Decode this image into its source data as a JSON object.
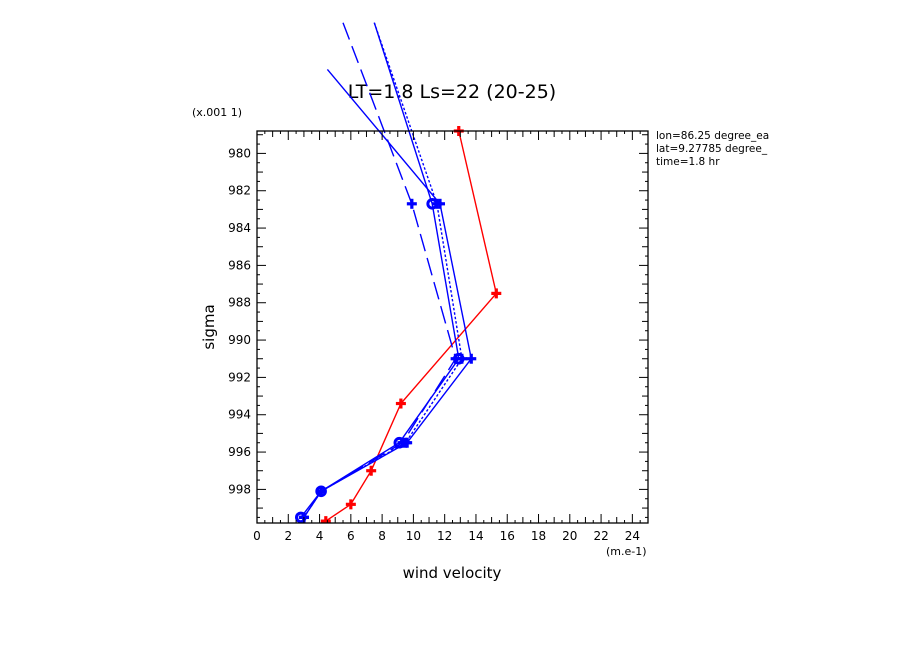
{
  "chart_data": {
    "type": "line",
    "title": "LT=1.8  Ls=22 (20-25)",
    "xlabel": "wind velocity",
    "ylabel": "sigma",
    "x_unit": "(m.e-1)",
    "y_scale_note": "(x.001 1)",
    "xlim": [
      0,
      25
    ],
    "ylim": [
      999.8,
      978.8
    ],
    "x_ticks": [
      0,
      2,
      4,
      6,
      8,
      10,
      12,
      14,
      16,
      18,
      20,
      22,
      24
    ],
    "x_tick_labels": [
      "0",
      "2",
      "4",
      "6",
      "8",
      "10",
      "12",
      "14",
      "16",
      "18",
      "20",
      "22",
      "24"
    ],
    "y_ticks": [
      980,
      982,
      984,
      986,
      988,
      990,
      992,
      994,
      996,
      998
    ],
    "y_tick_labels": [
      "980",
      "982",
      "984",
      "986",
      "988",
      "990",
      "992",
      "994",
      "996",
      "998"
    ],
    "info": [
      "lon=86.25 degree_ea",
      "lat=9.27785 degree_",
      "time=1.8 hr"
    ],
    "series": [
      {
        "color": "#ff0000",
        "dash": "solid",
        "marker": "cross",
        "x": [
          12.9,
          15.3,
          9.2,
          7.3,
          6.0,
          4.4
        ],
        "y": [
          978.8,
          987.5,
          993.4,
          997.0,
          998.8,
          999.7
        ]
      },
      {
        "color": "#0000ff",
        "dash": "solid",
        "marker": "cross",
        "x": [
          4.5,
          11.7,
          13.7,
          9.6,
          4.1,
          3.0
        ],
        "y": [
          975.5,
          982.7,
          991.0,
          995.5,
          998.1,
          999.5
        ]
      },
      {
        "color": "#0000ff",
        "dash": "solid",
        "marker": "circle",
        "x": [
          7.5,
          11.2,
          12.9,
          9.1,
          4.1,
          2.8
        ],
        "y": [
          973.0,
          982.7,
          991.0,
          995.5,
          998.1,
          999.5
        ]
      },
      {
        "color": "#0000ff",
        "dash": "dotted",
        "marker": "cross",
        "x": [
          7.5,
          11.5,
          13.1,
          9.5,
          4.1,
          3.0
        ],
        "y": [
          973.0,
          982.7,
          991.0,
          995.5,
          998.1,
          999.5
        ]
      },
      {
        "color": "#0000ff",
        "dash": "longdash",
        "marker": "cross",
        "x": [
          5.5,
          9.9,
          12.7,
          9.3,
          4.1,
          3.0
        ],
        "y": [
          973.0,
          982.7,
          991.0,
          995.5,
          998.1,
          999.5
        ]
      }
    ]
  }
}
